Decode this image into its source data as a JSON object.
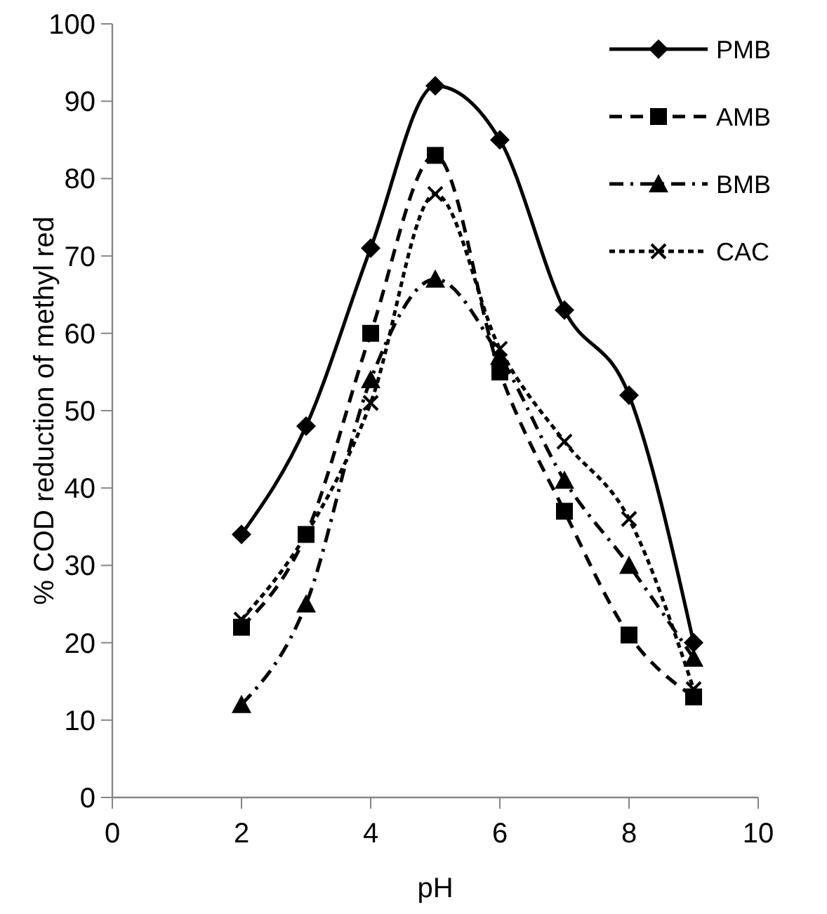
{
  "chart_data": {
    "type": "line",
    "xlabel": "pH",
    "ylabel": "% COD reduction of methyl red",
    "x": [
      2,
      3,
      4,
      5,
      6,
      7,
      8,
      9
    ],
    "xlim": [
      0,
      10
    ],
    "xticks": [
      0,
      2,
      4,
      6,
      8,
      10
    ],
    "ylim": [
      0,
      100
    ],
    "yticks": [
      0,
      10,
      20,
      30,
      40,
      50,
      60,
      70,
      80,
      90,
      100
    ],
    "grid": false,
    "legend": "top right",
    "series": [
      {
        "name": "PMB",
        "color": "#000000",
        "marker": "diamond",
        "line_style": "solid",
        "values": [
          34,
          48,
          71,
          92,
          85,
          63,
          52,
          20
        ]
      },
      {
        "name": "AMB",
        "color": "#000000",
        "marker": "square",
        "line_style": "dashed",
        "values": [
          22,
          34,
          60,
          83,
          55,
          37,
          21,
          13
        ]
      },
      {
        "name": "BMB",
        "color": "#000000",
        "marker": "triangle",
        "line_style": "dashdot",
        "values": [
          12,
          25,
          54,
          67,
          57,
          41,
          30,
          18
        ]
      },
      {
        "name": "CAC",
        "color": "#000000",
        "marker": "cross",
        "line_style": "dotted",
        "values": [
          23,
          34,
          51,
          78,
          58,
          46,
          36,
          14
        ]
      }
    ]
  }
}
